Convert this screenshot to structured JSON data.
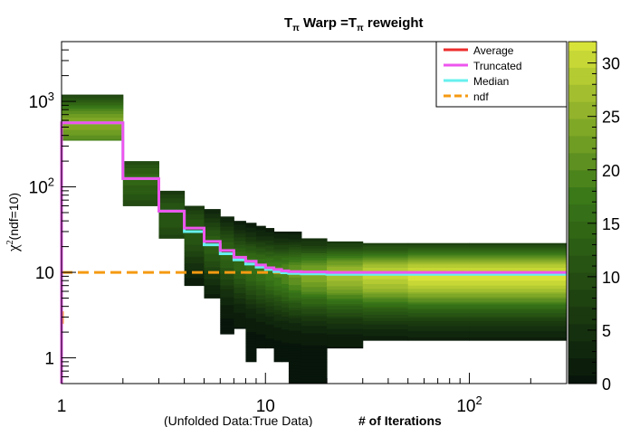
{
  "chart_data": {
    "type": "heatmap",
    "title": {
      "main_prefix": "T",
      "sub1": "π",
      "middle": " Warp =T",
      "sub2": "π",
      "suffix": " reweight"
    },
    "xlabel_note": "(Unfolded Data:True Data)",
    "xlabel": "# of Iterations",
    "ylabel": {
      "chi": "χ",
      "sup": "2",
      "rest": "(ndf=10)"
    },
    "x_scale": "log",
    "y_scale": "log",
    "xlim": [
      1,
      300
    ],
    "ylim": [
      0.5,
      5000
    ],
    "x_ticks": [
      {
        "value": 1,
        "label": "1"
      },
      {
        "value": 10,
        "label": "10"
      },
      {
        "value": 100,
        "label": "10",
        "sup": "2"
      }
    ],
    "y_ticks": [
      {
        "value": 1,
        "label": "1"
      },
      {
        "value": 10,
        "label": "10"
      },
      {
        "value": 100,
        "label": "10",
        "sup": "2"
      },
      {
        "value": 1000,
        "label": "10",
        "sup": "3"
      }
    ],
    "colorbar": {
      "min": 0,
      "max": 32,
      "ticks": [
        0,
        5,
        10,
        15,
        20,
        25,
        30
      ]
    },
    "colors": {
      "dark": "#07150a",
      "light": "#d8e33a",
      "average": "#ee2c2c",
      "truncated": "#ee55ee",
      "median": "#66f0ee",
      "ndf": "#f59a12"
    },
    "legend": [
      {
        "name": "Average",
        "color": "#ee2c2c",
        "style": "solid"
      },
      {
        "name": "Truncated",
        "color": "#ee55ee",
        "style": "solid"
      },
      {
        "name": "Median",
        "color": "#66f0ee",
        "style": "solid"
      },
      {
        "name": "ndf",
        "color": "#f59a12",
        "style": "dashed"
      }
    ],
    "ndf_value": 10,
    "iteration_bin_edges": [
      1,
      2,
      3,
      4,
      5,
      6,
      7,
      8,
      9,
      10,
      11,
      12,
      13,
      15,
      20,
      30,
      50,
      100,
      300
    ],
    "truncated_steps": [
      560,
      125,
      52,
      33,
      23,
      18,
      15,
      13.5,
      12.2,
      11.3,
      10.8,
      10.4,
      10.2,
      10.1,
      10.0,
      10.0,
      10.0,
      10.0
    ],
    "median_steps": [
      560,
      125,
      52,
      30,
      21,
      16.5,
      14,
      12.5,
      11.5,
      10.8,
      10.2,
      9.9,
      9.7,
      9.6,
      9.5,
      9.5,
      9.5,
      9.5
    ],
    "heat_columns": [
      {
        "x0": 1,
        "x1": 2,
        "y0": 350,
        "y1": 1200,
        "peak": 570,
        "max": 24
      },
      {
        "x0": 2,
        "x1": 3,
        "y0": 60,
        "y1": 200,
        "peak": 125,
        "max": 14
      },
      {
        "x0": 3,
        "x1": 4,
        "y0": 25,
        "y1": 90,
        "peak": 50,
        "max": 12
      },
      {
        "x0": 4,
        "x1": 5,
        "y0": 7,
        "y1": 60,
        "peak": 32,
        "max": 12
      },
      {
        "x0": 5,
        "x1": 6,
        "y0": 5,
        "y1": 55,
        "peak": 22,
        "max": 13
      },
      {
        "x0": 6,
        "x1": 7,
        "y0": 1.9,
        "y1": 45,
        "peak": 17,
        "max": 14
      },
      {
        "x0": 7,
        "x1": 8,
        "y0": 2.2,
        "y1": 40,
        "peak": 14,
        "max": 15
      },
      {
        "x0": 8,
        "x1": 9,
        "y0": 0.9,
        "y1": 38,
        "peak": 12.5,
        "max": 16
      },
      {
        "x0": 9,
        "x1": 10,
        "y0": 1.3,
        "y1": 35,
        "peak": 11.5,
        "max": 17
      },
      {
        "x0": 10,
        "x1": 11,
        "y0": 1.3,
        "y1": 33,
        "peak": 10.8,
        "max": 18
      },
      {
        "x0": 11,
        "x1": 12,
        "y0": 0.9,
        "y1": 30,
        "peak": 10.3,
        "max": 19
      },
      {
        "x0": 12,
        "x1": 13,
        "y0": 0.9,
        "y1": 30,
        "peak": 10.0,
        "max": 20
      },
      {
        "x0": 13,
        "x1": 15,
        "y0": 0.5,
        "y1": 30,
        "peak": 9.8,
        "max": 22
      },
      {
        "x0": 15,
        "x1": 20,
        "y0": 0.5,
        "y1": 25,
        "peak": 9.6,
        "max": 24
      },
      {
        "x0": 20,
        "x1": 30,
        "y0": 1.3,
        "y1": 23,
        "peak": 9.5,
        "max": 27
      },
      {
        "x0": 30,
        "x1": 50,
        "y0": 1.6,
        "y1": 22,
        "peak": 9.5,
        "max": 30
      },
      {
        "x0": 50,
        "x1": 100,
        "y0": 1.6,
        "y1": 22,
        "peak": 9.5,
        "max": 32
      },
      {
        "x0": 100,
        "x1": 300,
        "y0": 1.6,
        "y1": 22,
        "peak": 9.5,
        "max": 32
      }
    ]
  }
}
